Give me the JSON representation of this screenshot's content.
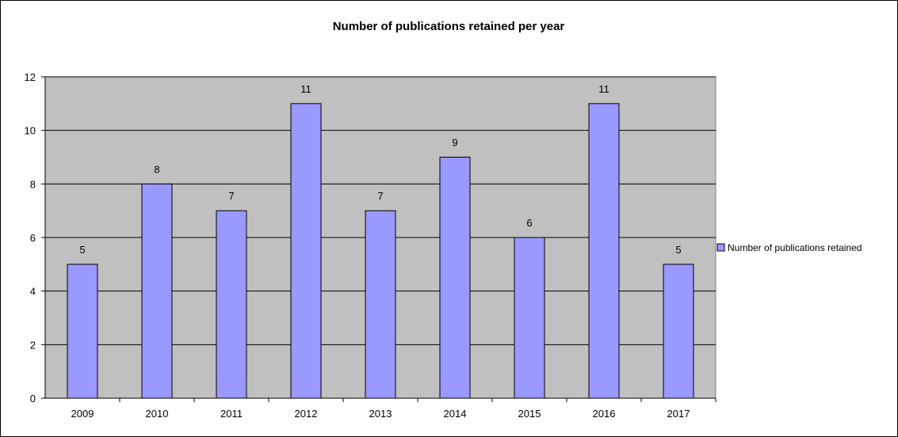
{
  "chart_data": {
    "type": "bar",
    "title": "Number of publications retained per year",
    "xlabel": "",
    "ylabel": "",
    "categories": [
      "2009",
      "2010",
      "2011",
      "2012",
      "2013",
      "2014",
      "2015",
      "2016",
      "2017"
    ],
    "series": [
      {
        "name": "Number of publications retained",
        "values": [
          5,
          8,
          7,
          11,
          7,
          9,
          6,
          11,
          5
        ],
        "color": "#9999ff"
      }
    ],
    "ylim": [
      0,
      12
    ],
    "yticks": [
      "0",
      "2",
      "4",
      "6",
      "8",
      "10",
      "12"
    ],
    "data_labels": [
      "5",
      "8",
      "7",
      "11",
      "7",
      "9",
      "6",
      "11",
      "5"
    ],
    "grid": true,
    "plot_background": "#c0c0c0",
    "legend": "right"
  }
}
